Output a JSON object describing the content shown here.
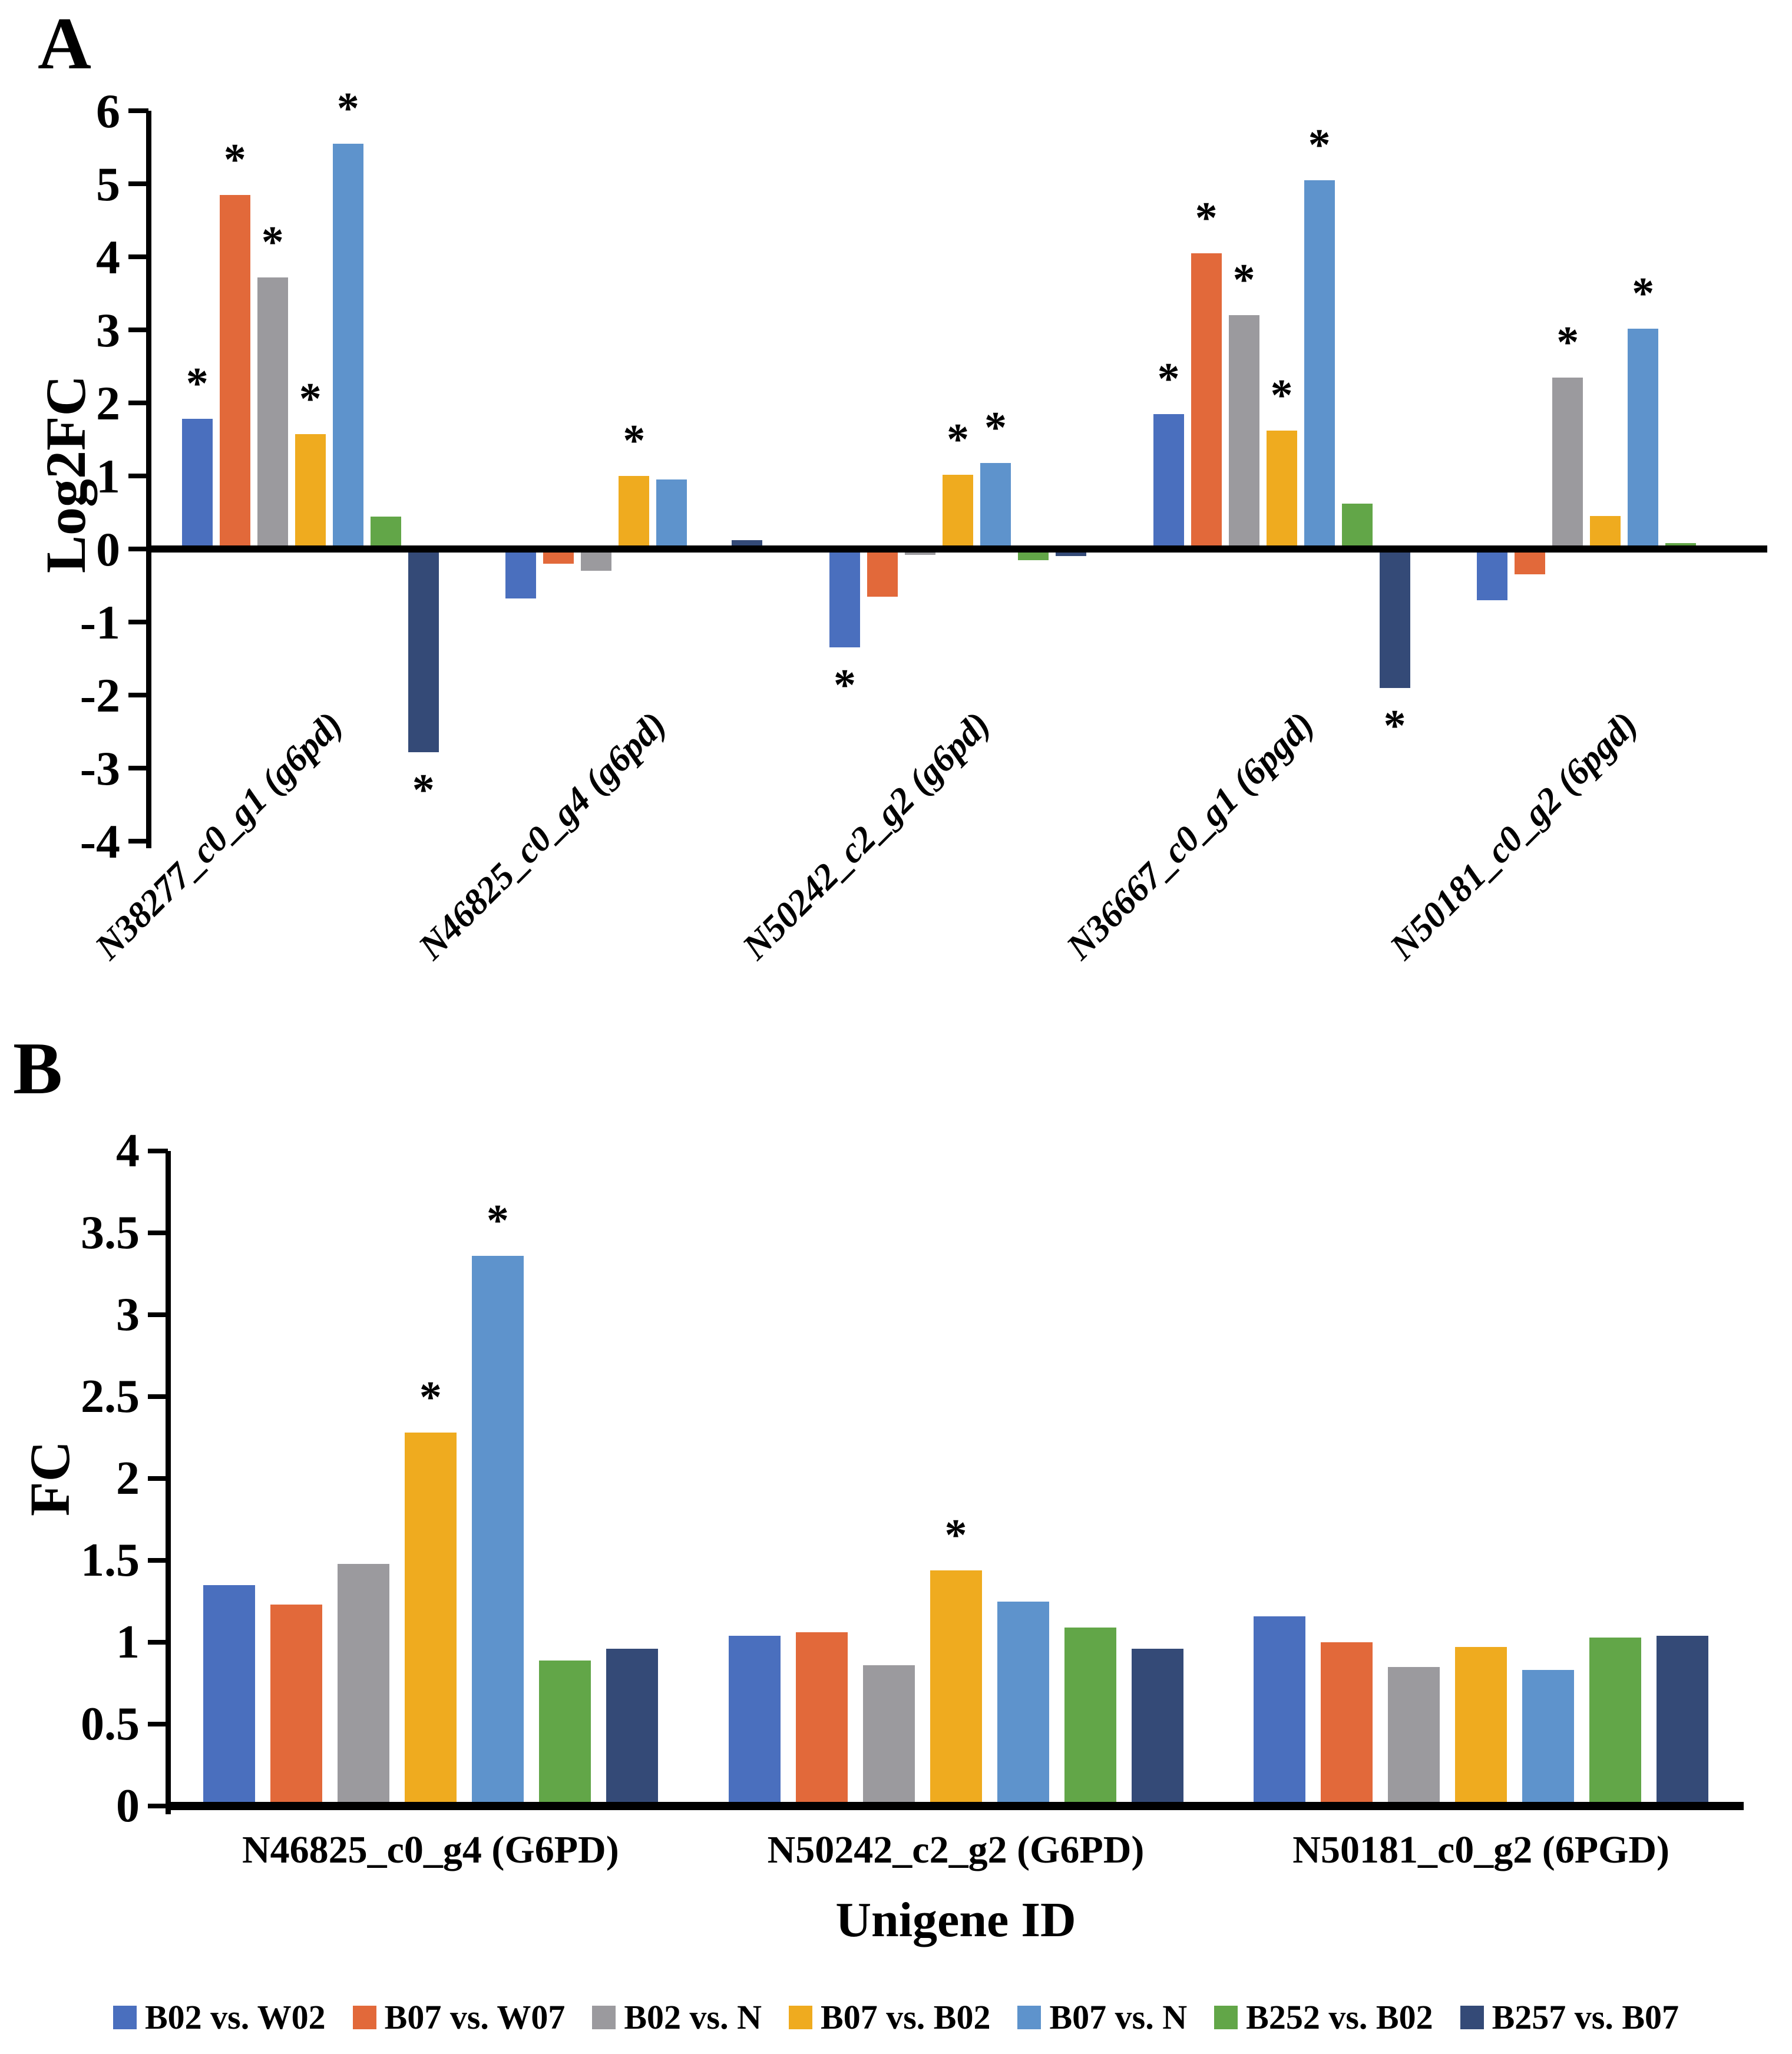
{
  "figure": {
    "panel_a_label": "A",
    "panel_b_label": "B"
  },
  "legend": {
    "items": [
      {
        "label": "B02 vs. W02",
        "color": "#4A6FBE"
      },
      {
        "label": "B07 vs. W07",
        "color": "#E2693A"
      },
      {
        "label": "B02 vs. N",
        "color": "#9B9A9E"
      },
      {
        "label": "B07 vs. B02",
        "color": "#EFAB1F"
      },
      {
        "label": "B07 vs. N",
        "color": "#5E93CC"
      },
      {
        "label": "B252 vs. B02",
        "color": "#62A648"
      },
      {
        "label": "B257 vs. B07",
        "color": "#344A77"
      }
    ]
  },
  "chart_data": [
    {
      "panel_label": "A",
      "type": "bar",
      "title": "",
      "xlabel": "",
      "ylabel": "Log2FC",
      "ylim": [
        -4,
        6
      ],
      "ytick_step": 1,
      "ytick_values": [
        6,
        5,
        4,
        3,
        2,
        1,
        0,
        -1,
        -2,
        -3,
        -4
      ],
      "grid": false,
      "sig_marker": "*",
      "categories": [
        "N38277_c0_g1 (g6pd)",
        "N46825_c0_g4 (g6pd)",
        "N50242_c2_g2 (g6pd)",
        "N36667_c0_g1 (6pgd)",
        "N50181_c0_g2 (6pgd)"
      ],
      "series": [
        {
          "name": "B02 vs. W02",
          "color": "#4A6FBE",
          "values": [
            1.78,
            -0.68,
            -1.35,
            1.85,
            -0.7
          ],
          "significant": [
            true,
            false,
            true,
            true,
            false
          ]
        },
        {
          "name": "B07 vs. W07",
          "color": "#E2693A",
          "values": [
            4.85,
            -0.2,
            -0.65,
            4.05,
            -0.35
          ],
          "significant": [
            true,
            false,
            false,
            true,
            false
          ]
        },
        {
          "name": "B02 vs. N",
          "color": "#9B9A9E",
          "values": [
            3.72,
            -0.3,
            -0.08,
            3.2,
            2.35
          ],
          "significant": [
            true,
            false,
            false,
            true,
            true
          ]
        },
        {
          "name": "B07 vs. B02",
          "color": "#EFAB1F",
          "values": [
            1.57,
            1.0,
            1.02,
            1.62,
            0.45
          ],
          "significant": [
            true,
            true,
            true,
            true,
            false
          ]
        },
        {
          "name": "B07 vs. N",
          "color": "#5E93CC",
          "values": [
            5.55,
            0.95,
            1.18,
            5.05,
            3.02
          ],
          "significant": [
            true,
            false,
            true,
            true,
            true
          ]
        },
        {
          "name": "B252 vs. B02",
          "color": "#62A648",
          "values": [
            0.44,
            0,
            -0.15,
            0.62,
            0.08
          ],
          "significant": [
            false,
            false,
            false,
            false,
            false
          ]
        },
        {
          "name": "B257 vs. B07",
          "color": "#344A77",
          "values": [
            -2.78,
            0.12,
            -0.1,
            -1.9,
            0
          ],
          "significant": [
            true,
            false,
            false,
            true,
            false
          ]
        }
      ]
    },
    {
      "panel_label": "B",
      "type": "bar",
      "title": "",
      "xlabel": "Unigene ID",
      "ylabel": "FC",
      "ylim": [
        0,
        4
      ],
      "ytick_step": 0.5,
      "ytick_values": [
        0,
        0.5,
        1,
        1.5,
        2,
        2.5,
        3,
        3.5,
        4
      ],
      "grid": false,
      "sig_marker": "*",
      "categories": [
        "N46825_c0_g4 (G6PD)",
        "N50242_c2_g2 (G6PD)",
        "N50181_c0_g2 (6PGD)"
      ],
      "series": [
        {
          "name": "B02 vs. W02",
          "color": "#4A6FBE",
          "values": [
            1.35,
            1.04,
            1.16
          ],
          "significant": [
            false,
            false,
            false
          ]
        },
        {
          "name": "B07 vs. W07",
          "color": "#E2693A",
          "values": [
            1.23,
            1.06,
            1.0
          ],
          "significant": [
            false,
            false,
            false
          ]
        },
        {
          "name": "B02 vs. N",
          "color": "#9B9A9E",
          "values": [
            1.48,
            0.86,
            0.85
          ],
          "significant": [
            false,
            false,
            false
          ]
        },
        {
          "name": "B07 vs. B02",
          "color": "#EFAB1F",
          "values": [
            2.28,
            1.44,
            0.97
          ],
          "significant": [
            true,
            true,
            false
          ]
        },
        {
          "name": "B07 vs. N",
          "color": "#5E93CC",
          "values": [
            3.36,
            1.25,
            0.83
          ],
          "significant": [
            true,
            false,
            false
          ]
        },
        {
          "name": "B252 vs. B02",
          "color": "#62A648",
          "values": [
            0.89,
            1.09,
            1.03
          ],
          "significant": [
            false,
            false,
            false
          ]
        },
        {
          "name": "B257 vs. B07",
          "color": "#344A77",
          "values": [
            0.96,
            0.96,
            1.04
          ],
          "significant": [
            false,
            false,
            false
          ]
        }
      ]
    }
  ]
}
